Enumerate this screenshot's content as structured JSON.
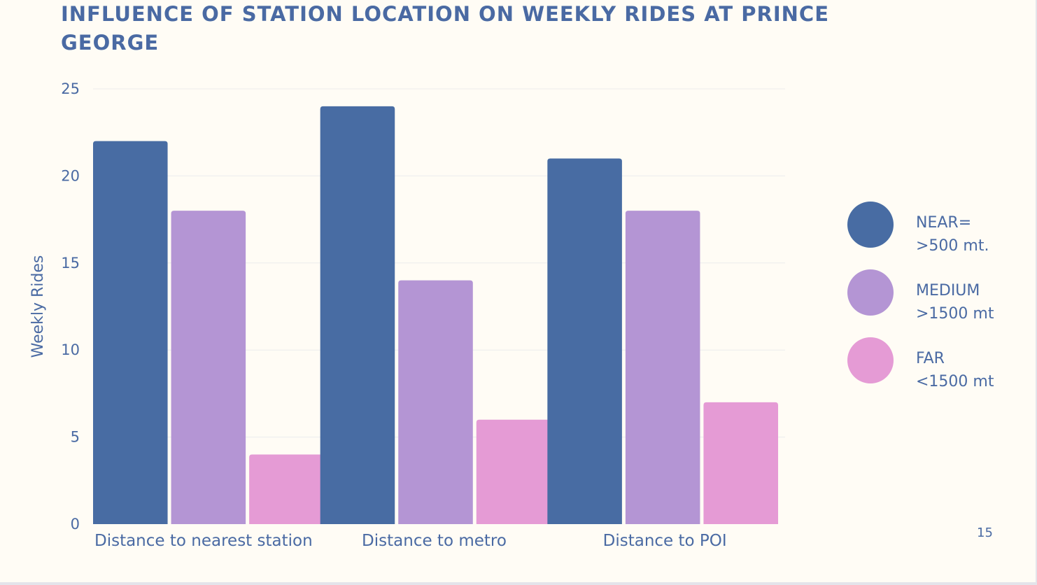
{
  "slide": {
    "title": "INFLUENCE OF STATION LOCATION ON WEEKLY RIDES AT PRINCE GEORGE",
    "page_number": "15"
  },
  "colors": {
    "text": "#4a6aa3",
    "background": "#fffcf5",
    "grid": "#ececec"
  },
  "chart_data": {
    "type": "bar",
    "title": "INFLUENCE OF STATION LOCATION ON WEEKLY RIDES AT PRINCE GEORGE",
    "xlabel": "",
    "ylabel": "Weekly Rides",
    "ylim": [
      0,
      25
    ],
    "yticks": [
      0,
      5,
      10,
      15,
      20,
      25
    ],
    "grid": true,
    "legend_position": "right",
    "categories": [
      "Distance to nearest station",
      "Distance to metro",
      "Distance to POI"
    ],
    "series": [
      {
        "name": "NEAR= >500 mt.",
        "color": "#486ca3",
        "values": [
          22,
          24,
          21
        ]
      },
      {
        "name": "MEDIUM >1500 mt",
        "color": "#b495d4",
        "values": [
          18,
          14,
          18
        ]
      },
      {
        "name": "FAR <1500 mt",
        "color": "#e59bd5",
        "values": [
          4,
          6,
          7
        ]
      }
    ]
  },
  "legend": {
    "items": [
      {
        "line1": "NEAR=",
        "line2": ">500 mt."
      },
      {
        "line1": "MEDIUM",
        "line2": ">1500 mt"
      },
      {
        "line1": "FAR",
        "line2": "<1500 mt"
      }
    ]
  }
}
